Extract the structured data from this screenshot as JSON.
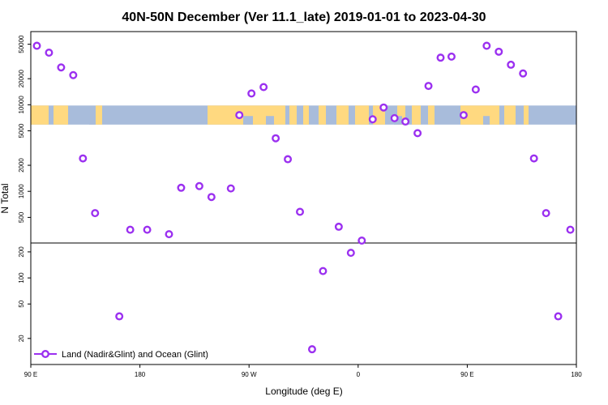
{
  "chart_data": {
    "type": "scatter",
    "title": "40N-50N December (Ver 11.1_late)   2019-01-01 to 2023-04-30",
    "xlabel": "Longitude (deg E)",
    "ylabel": "N Total",
    "x_axis_order": [
      90,
      120,
      150,
      180,
      -150,
      -120,
      -90,
      -60,
      -30,
      0,
      30,
      60,
      90,
      120,
      150,
      180
    ],
    "xticks": [
      {
        "pos": 90,
        "label": "90 E"
      },
      {
        "pos": 180,
        "label": "180"
      },
      {
        "pos": 270,
        "label": "90 W"
      },
      {
        "pos": 360,
        "label": "0"
      },
      {
        "pos": 450,
        "label": "90 E"
      },
      {
        "pos": 540,
        "label": "180"
      }
    ],
    "xlim": [
      90,
      540
    ],
    "ylim": [
      10,
      70000
    ],
    "upper_yticks": [
      "50000",
      "20000",
      "10000",
      "5000",
      "2000",
      "1000",
      "500"
    ],
    "lower_yticks": [
      "200",
      "100",
      "50",
      "20"
    ],
    "land_band": {
      "y_from": 5900,
      "y_to": 9800,
      "land_color": "#FFD980",
      "ocean_color": "#A8BCDB"
    },
    "series": [
      {
        "name": "Land (Nadir&Glint) and Ocean (Glint)",
        "color": "#9B30F0",
        "points": [
          [
            95,
            48000
          ],
          [
            105,
            40000
          ],
          [
            115,
            27000
          ],
          [
            125,
            22000
          ],
          [
            133,
            2400
          ],
          [
            143,
            560
          ],
          [
            163,
            36
          ],
          [
            172,
            360
          ],
          [
            186,
            360
          ],
          [
            204,
            320
          ],
          [
            214,
            1100
          ],
          [
            229,
            1150
          ],
          [
            239,
            860
          ],
          [
            255,
            1080
          ],
          [
            262,
            7600
          ],
          [
            272,
            13500
          ],
          [
            282,
            16000
          ],
          [
            292,
            4100
          ],
          [
            302,
            2350
          ],
          [
            312,
            580
          ],
          [
            322,
            15
          ],
          [
            331,
            120
          ],
          [
            344,
            390
          ],
          [
            354,
            195
          ],
          [
            363,
            270
          ],
          [
            372,
            6800
          ],
          [
            381,
            9300
          ],
          [
            390,
            7000
          ],
          [
            399,
            6400
          ],
          [
            409,
            4700
          ],
          [
            418,
            16500
          ],
          [
            428,
            35000
          ],
          [
            437,
            36000
          ],
          [
            447,
            7600
          ],
          [
            457,
            15000
          ],
          [
            466,
            48000
          ],
          [
            476,
            41000
          ],
          [
            486,
            29000
          ],
          [
            496,
            23000
          ],
          [
            505,
            2400
          ],
          [
            515,
            560
          ],
          [
            525,
            36
          ],
          [
            535,
            360
          ]
        ]
      }
    ],
    "legend": {
      "label": "Land (Nadir&Glint) and Ocean (Glint)",
      "position": "bottom-left"
    }
  }
}
